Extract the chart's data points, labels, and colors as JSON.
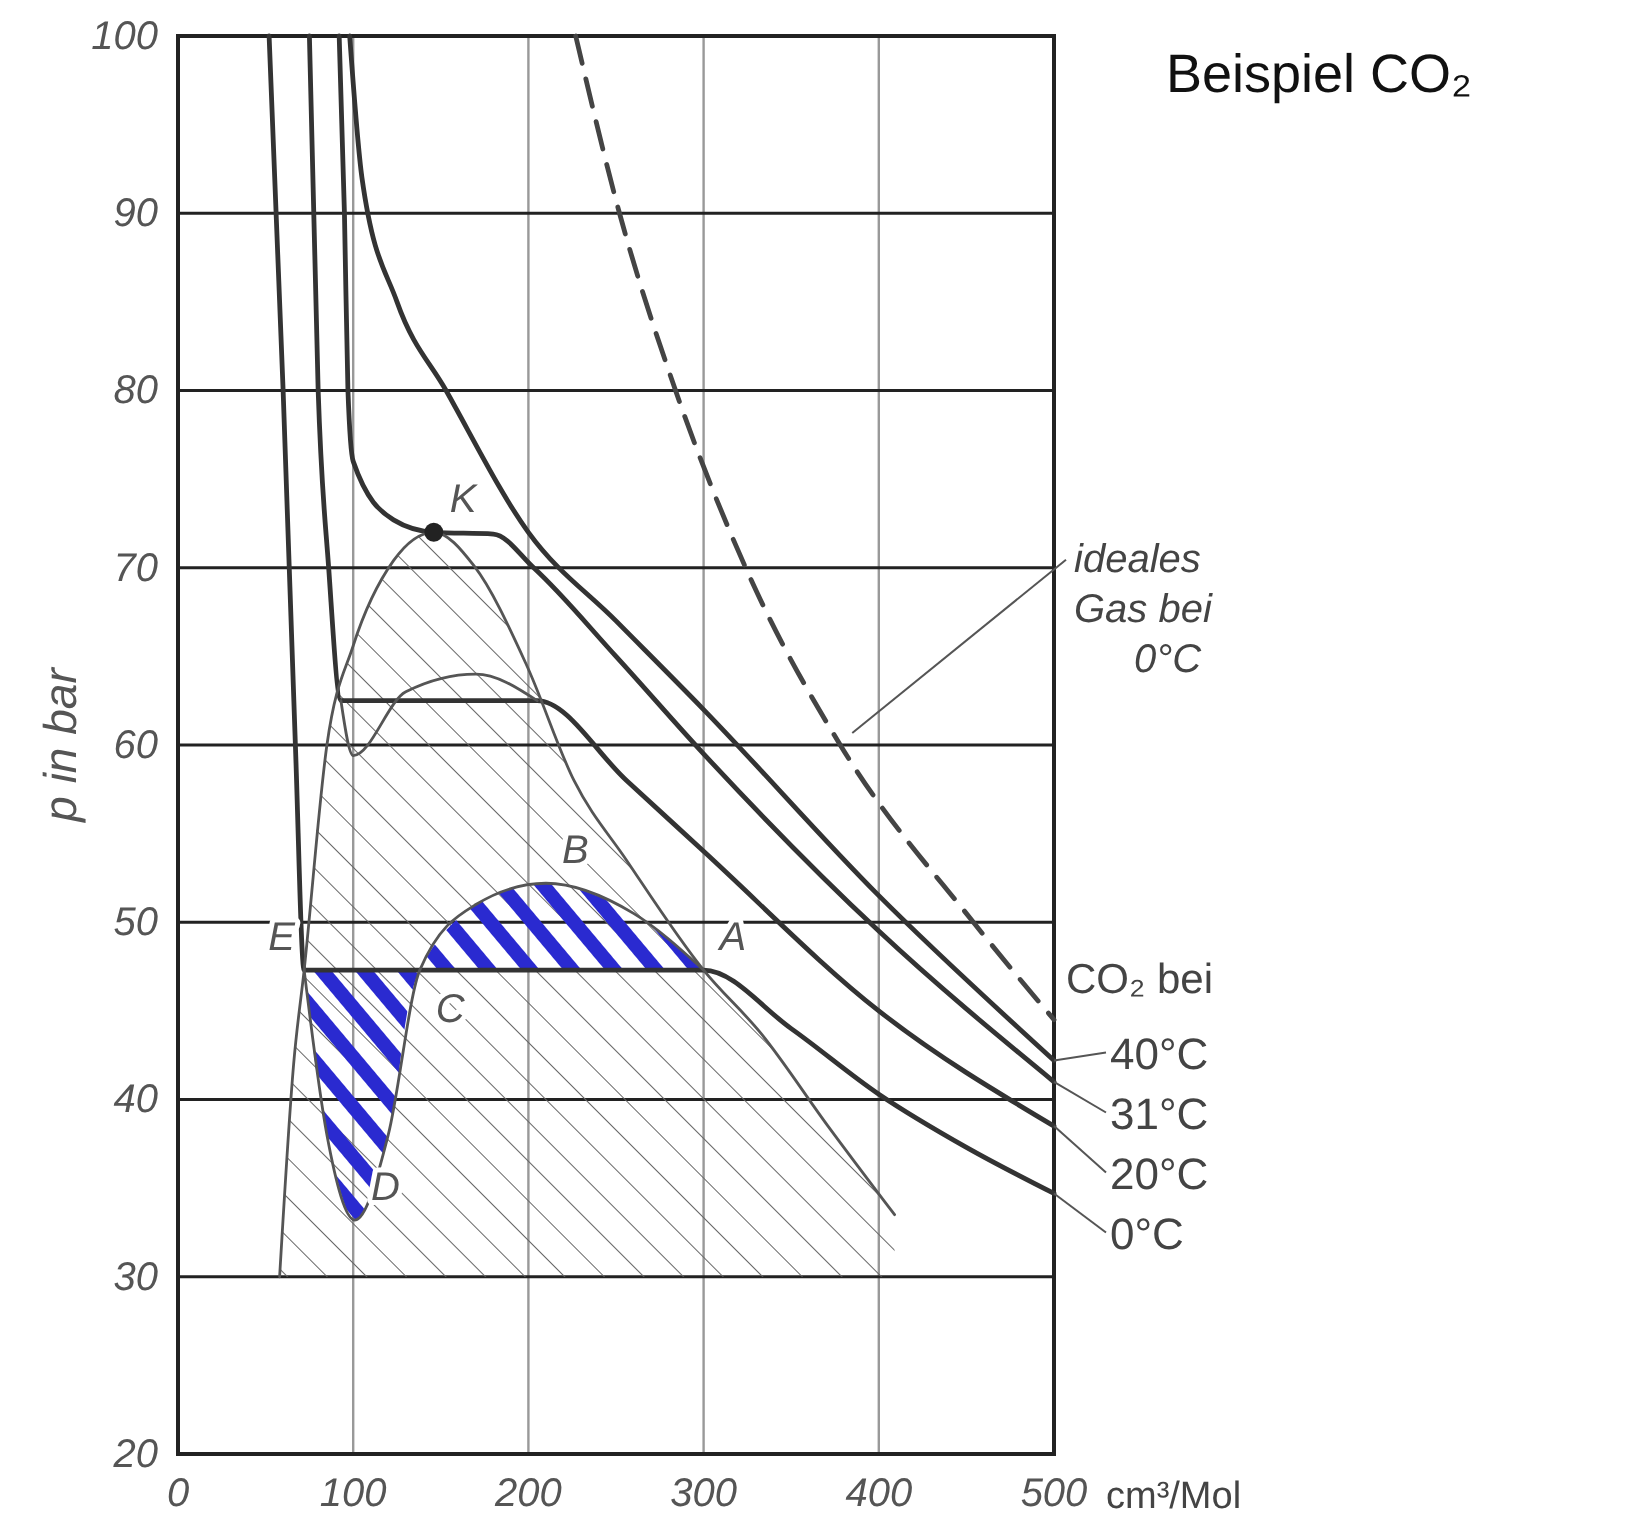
{
  "chart_data": {
    "type": "line",
    "title": "Beispiel CO₂",
    "xlabel": "cm³/Mol",
    "ylabel": "p in bar",
    "xlim": [
      0,
      500
    ],
    "ylim": [
      20,
      100
    ],
    "xticks": [
      0,
      100,
      200,
      300,
      400,
      500
    ],
    "yticks": [
      20,
      30,
      40,
      50,
      60,
      70,
      80,
      90,
      100
    ],
    "grid": true,
    "series": [
      {
        "name": "ideales Gas bei 0°C",
        "color": "#444444",
        "line_style": "dashed",
        "x": [
          227,
          252,
          284,
          324,
          378,
          454,
          500
        ],
        "values": [
          100,
          90,
          80,
          70,
          60,
          50,
          44.5
        ]
      },
      {
        "name": "40°C",
        "color": "#333333",
        "x": [
          98,
          105,
          125,
          153,
          200,
          250,
          300,
          400,
          500
        ],
        "values": [
          100,
          92,
          85,
          80,
          72,
          67,
          62,
          51.5,
          42.2
        ]
      },
      {
        "name": "31°C",
        "color": "#333333",
        "x": [
          92,
          95,
          97,
          100,
          123,
          146,
          180,
          203,
          250,
          300,
          400,
          500
        ],
        "values": [
          100,
          90,
          80,
          76,
          72.7,
          72,
          71.9,
          70,
          65,
          59.5,
          49.5,
          41
        ]
      },
      {
        "name": "20°C",
        "color": "#333333",
        "x": [
          75,
          80,
          86,
          93,
          205,
          256,
          300,
          400,
          500
        ],
        "values": [
          100,
          80,
          70,
          62.5,
          62.5,
          58,
          54,
          45,
          38.5
        ]
      },
      {
        "name": "0°C",
        "color": "#333333",
        "x": [
          52,
          60,
          67,
          72,
          300,
          350,
          400,
          450,
          500
        ],
        "values": [
          100,
          80,
          60,
          47.3,
          47.3,
          44,
          40.3,
          37.3,
          34.7
        ]
      },
      {
        "color": "#555555",
        "x": [
          58,
          66,
          72,
          85,
          100,
          123,
          146,
          169,
          199,
          226,
          256,
          300,
          333,
          371,
          409
        ],
        "values": [
          30,
          42,
          47.3,
          60,
          65.6,
          70.4,
          72,
          70.1,
          64.5,
          58,
          53.5,
          47.3,
          43.7,
          38.5,
          33.5
        ]
      },
      {
        "color": "#555555",
        "x": [
          72,
          85,
          101,
          120,
          138,
          170,
          210,
          260,
          300
        ],
        "values": [
          47.3,
          38,
          33.2,
          38,
          47.3,
          51,
          52.2,
          50.5,
          47.3
        ]
      },
      {
        "color": "#555555",
        "x": [
          93,
          100,
          130,
          170,
          205
        ],
        "values": [
          62.5,
          59.4,
          63,
          64,
          62.5
        ]
      },
      {
        "type": "scatter",
        "marker": "circle",
        "color": "#222222",
        "x": [
          146
        ],
        "values": [
          72
        ]
      }
    ],
    "annotations": [
      {
        "text": "K",
        "x": 146,
        "y": 72
      },
      {
        "text": "A",
        "x": 300,
        "y": 47.3
      },
      {
        "text": "B",
        "x": 210,
        "y": 52.2
      },
      {
        "text": "C",
        "x": 138,
        "y": 47.3
      },
      {
        "text": "D",
        "x": 101,
        "y": 33.2
      },
      {
        "text": "E",
        "x": 72,
        "y": 47.3
      },
      "CO₂ bei"
    ]
  }
}
